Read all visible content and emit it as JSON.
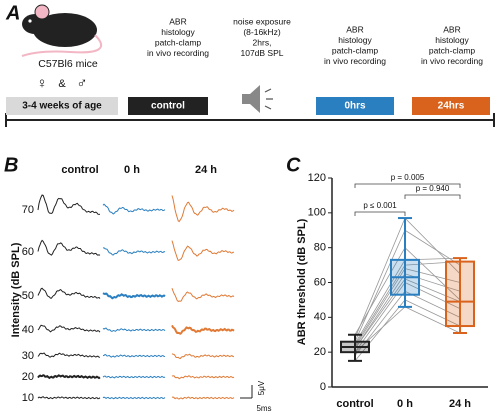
{
  "panel_a": {
    "label": "A",
    "strain": "C57Bl6 mice",
    "female": "♀",
    "and": "&",
    "male": "♂",
    "age": "3-4 weeks of age",
    "stages": [
      "control",
      "0hrs",
      "24hrs"
    ],
    "procedures": [
      [
        "ABR",
        "histology",
        "patch-clamp",
        "in vivo recording"
      ],
      [
        "noise exposure",
        "(8-16kHz)",
        "2hrs,",
        "107dB SPL"
      ],
      [
        "ABR",
        "histology",
        "patch-clamp",
        "in vivo recording"
      ],
      [
        "ABR",
        "histology",
        "patch-clamp",
        "in vivo recording"
      ]
    ]
  },
  "panel_b": {
    "label": "B",
    "columns": [
      "control",
      "0 h",
      "24 h"
    ],
    "ylabel": "Intensity (dB SPL)",
    "levels": [
      70,
      60,
      50,
      40,
      30,
      20,
      10
    ],
    "scale_y": "5μV",
    "scale_x": "5ms"
  },
  "chart_data": {
    "type": "box",
    "label": "C",
    "ylabel": "ABR threshold (dB SPL)",
    "categories": [
      "control",
      "0 h",
      "24 h"
    ],
    "colors": [
      "#222222",
      "#2a7fc0",
      "#d9631c"
    ],
    "boxes": [
      {
        "min": 15,
        "q1": 20,
        "median": 23,
        "q3": 26,
        "max": 30
      },
      {
        "min": 46,
        "q1": 53,
        "median": 63,
        "q3": 73,
        "max": 97
      },
      {
        "min": 31,
        "q1": 35,
        "median": 49,
        "q3": 72,
        "max": 74
      }
    ],
    "subjects": [
      [
        15,
        50,
        35
      ],
      [
        18,
        55,
        40
      ],
      [
        20,
        60,
        45
      ],
      [
        22,
        62,
        49
      ],
      [
        22,
        65,
        55
      ],
      [
        23,
        68,
        60
      ],
      [
        24,
        70,
        72
      ],
      [
        25,
        73,
        74
      ],
      [
        26,
        90,
        70
      ],
      [
        28,
        97,
        65
      ],
      [
        20,
        46,
        31
      ],
      [
        30,
        80,
        50
      ]
    ],
    "annotations": [
      "p ≤ 0.001",
      "p = 0.940",
      "p = 0.005"
    ],
    "ylim": [
      0,
      120
    ],
    "yticks": [
      0,
      20,
      40,
      60,
      80,
      100,
      120
    ]
  }
}
